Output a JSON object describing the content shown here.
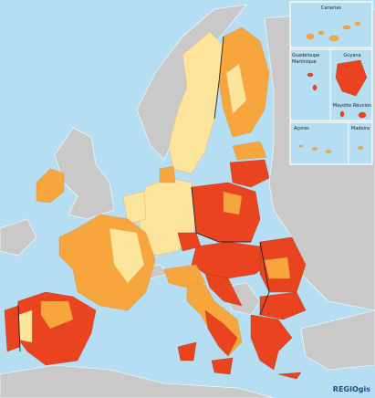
{
  "insets": {
    "canarias": "Canarias",
    "guadeloupe": "Guadeloupe",
    "martinique": "Martinique",
    "guyane": "Guyane",
    "mayotte": "Mayotte",
    "reunion": "Réunion",
    "acores": "Açores",
    "madeira": "Madeira"
  },
  "credit": "REGIOgis"
}
